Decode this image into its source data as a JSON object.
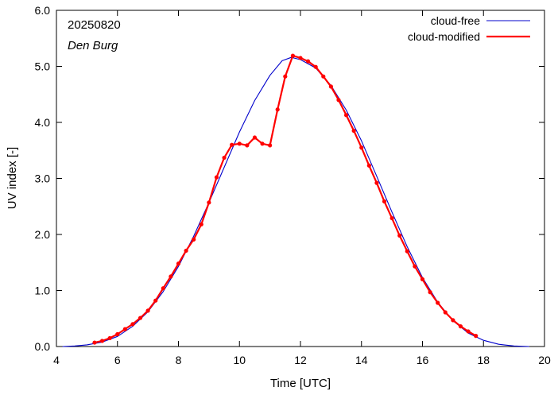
{
  "chart_data": {
    "type": "line",
    "annotations": {
      "date": "20250820",
      "location": "Den Burg"
    },
    "xlabel": "Time  [UTC]",
    "ylabel": "UV index  [-]",
    "xlim": [
      4,
      20
    ],
    "ylim": [
      0,
      6
    ],
    "x_ticks": [
      "4",
      "6",
      "8",
      "10",
      "12",
      "14",
      "16",
      "18",
      "20"
    ],
    "y_ticks": [
      "0.0",
      "1.0",
      "2.0",
      "3.0",
      "4.0",
      "5.0",
      "6.0"
    ],
    "legend_position": "top-right",
    "grid": false,
    "series": [
      {
        "name": "cloud-free",
        "color": "#0000cc",
        "markers": false,
        "points": [
          [
            4.2,
            0.0
          ],
          [
            4.6,
            0.01
          ],
          [
            5.0,
            0.03
          ],
          [
            5.5,
            0.08
          ],
          [
            6.0,
            0.18
          ],
          [
            6.5,
            0.36
          ],
          [
            7.0,
            0.62
          ],
          [
            7.5,
            0.98
          ],
          [
            8.0,
            1.43
          ],
          [
            8.5,
            1.97
          ],
          [
            9.0,
            2.57
          ],
          [
            9.5,
            3.2
          ],
          [
            10.0,
            3.83
          ],
          [
            10.5,
            4.39
          ],
          [
            11.0,
            4.84
          ],
          [
            11.4,
            5.1
          ],
          [
            11.7,
            5.16
          ],
          [
            12.0,
            5.12
          ],
          [
            12.5,
            4.97
          ],
          [
            13.0,
            4.66
          ],
          [
            13.5,
            4.22
          ],
          [
            14.0,
            3.67
          ],
          [
            14.5,
            3.04
          ],
          [
            15.0,
            2.4
          ],
          [
            15.5,
            1.78
          ],
          [
            16.0,
            1.23
          ],
          [
            16.5,
            0.79
          ],
          [
            17.0,
            0.46
          ],
          [
            17.5,
            0.24
          ],
          [
            18.0,
            0.11
          ],
          [
            18.5,
            0.04
          ],
          [
            19.0,
            0.01
          ],
          [
            19.5,
            0.0
          ]
        ]
      },
      {
        "name": "cloud-modified",
        "color": "#ff0000",
        "markers": true,
        "points": [
          [
            5.25,
            0.07
          ],
          [
            5.5,
            0.1
          ],
          [
            5.75,
            0.15
          ],
          [
            6.0,
            0.22
          ],
          [
            6.25,
            0.31
          ],
          [
            6.5,
            0.4
          ],
          [
            6.75,
            0.51
          ],
          [
            7.0,
            0.64
          ],
          [
            7.25,
            0.82
          ],
          [
            7.5,
            1.04
          ],
          [
            7.75,
            1.25
          ],
          [
            8.0,
            1.48
          ],
          [
            8.25,
            1.71
          ],
          [
            8.5,
            1.91
          ],
          [
            8.75,
            2.18
          ],
          [
            9.0,
            2.57
          ],
          [
            9.25,
            3.02
          ],
          [
            9.5,
            3.37
          ],
          [
            9.75,
            3.6
          ],
          [
            10.0,
            3.62
          ],
          [
            10.25,
            3.59
          ],
          [
            10.5,
            3.73
          ],
          [
            10.75,
            3.62
          ],
          [
            11.0,
            3.59
          ],
          [
            11.25,
            4.23
          ],
          [
            11.5,
            4.82
          ],
          [
            11.75,
            5.19
          ],
          [
            12.0,
            5.15
          ],
          [
            12.25,
            5.09
          ],
          [
            12.5,
            4.99
          ],
          [
            12.75,
            4.82
          ],
          [
            13.0,
            4.64
          ],
          [
            13.25,
            4.4
          ],
          [
            13.5,
            4.13
          ],
          [
            13.75,
            3.85
          ],
          [
            14.0,
            3.55
          ],
          [
            14.25,
            3.23
          ],
          [
            14.5,
            2.92
          ],
          [
            14.75,
            2.59
          ],
          [
            15.0,
            2.29
          ],
          [
            15.25,
            1.98
          ],
          [
            15.5,
            1.7
          ],
          [
            15.75,
            1.43
          ],
          [
            16.0,
            1.2
          ],
          [
            16.25,
            0.97
          ],
          [
            16.5,
            0.78
          ],
          [
            16.75,
            0.61
          ],
          [
            17.0,
            0.47
          ],
          [
            17.25,
            0.36
          ],
          [
            17.5,
            0.27
          ],
          [
            17.75,
            0.19
          ]
        ]
      }
    ]
  }
}
